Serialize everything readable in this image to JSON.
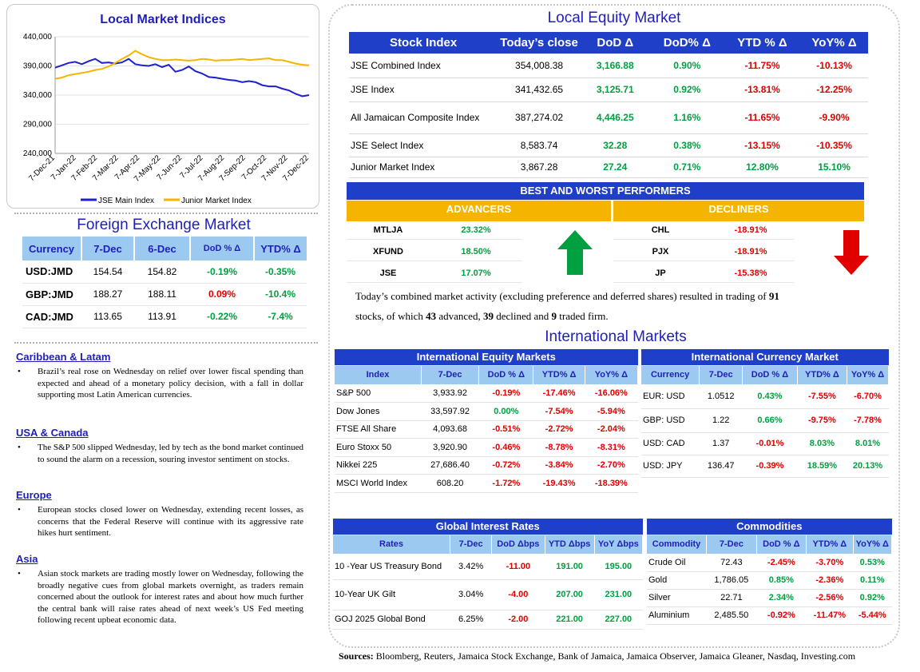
{
  "chart": {
    "title": "Local Market Indices",
    "chart_data": {
      "type": "line",
      "ylim": [
        240000,
        440000
      ],
      "yticks": [
        "440,000",
        "390,000",
        "340,000",
        "290,000",
        "240,000"
      ],
      "xticks": [
        "7-Dec-21",
        "7-Jan-22",
        "7-Feb-22",
        "7-Mar-22",
        "7-Apr-22",
        "7-May-22",
        "7-Jun-22",
        "7-Jul-22",
        "7-Aug-22",
        "7-Sep-22",
        "7-Oct-22",
        "7-Nov-22",
        "7-Dec-22"
      ],
      "series": [
        {
          "name": "JSE Main Index",
          "color": "#1f1fd0",
          "values": [
            387000,
            391000,
            395000,
            397000,
            393000,
            398000,
            402000,
            395000,
            396000,
            394000,
            396000,
            402000,
            393000,
            391000,
            390000,
            393000,
            388000,
            392000,
            380000,
            383000,
            389000,
            381000,
            377000,
            371000,
            370000,
            368000,
            366000,
            365000,
            362000,
            364000,
            362000,
            357000,
            355000,
            355000,
            351000,
            348000,
            342000,
            338000,
            340000
          ]
        },
        {
          "name": "Junior Market Index",
          "color": "#f4b400",
          "values": [
            368000,
            370000,
            374000,
            376000,
            378000,
            380000,
            383000,
            385000,
            389000,
            395000,
            402000,
            408000,
            416000,
            410000,
            405000,
            402000,
            400000,
            400000,
            401000,
            400000,
            399000,
            400000,
            402000,
            401000,
            399000,
            400000,
            400000,
            401000,
            402000,
            400000,
            401000,
            402000,
            403000,
            400000,
            400000,
            397000,
            394000,
            392000,
            391000
          ]
        }
      ],
      "legend": "bottom"
    }
  },
  "fx": {
    "title": "Foreign Exchange Market",
    "headers": [
      "Currency",
      "7-Dec",
      "6-Dec",
      "DoD % Δ",
      "YTD% Δ"
    ],
    "rows": [
      {
        "cur": "USD:JMD",
        "d7": "154.54",
        "d6": "154.82",
        "dod": "-0.19%",
        "dod_sign": "pos",
        "ytd": "-0.35%",
        "ytd_sign": "pos"
      },
      {
        "cur": "GBP:JMD",
        "d7": "188.27",
        "d6": "188.11",
        "dod": "0.09%",
        "dod_sign": "neg",
        "ytd": "-10.4%",
        "ytd_sign": "pos"
      },
      {
        "cur": "CAD:JMD",
        "d7": "113.65",
        "d6": "113.91",
        "dod": "-0.22%",
        "dod_sign": "pos",
        "ytd": "-7.4%",
        "ytd_sign": "pos"
      }
    ]
  },
  "news": [
    {
      "head": "Caribbean & Latam",
      "body": "Brazil’s real rose on Wednesday on relief over lower fiscal spending than expected and ahead of a monetary policy decision, with a fall in dollar supporting most Latin American currencies."
    },
    {
      "head": "USA & Canada",
      "body": "The S&P 500 slipped Wednesday, led by tech as the bond market continued to sound the alarm on a recession, souring investor sentiment on stocks."
    },
    {
      "head": "Europe",
      "body": "European stocks closed lower on Wednesday, extending recent losses, as concerns that the Federal Reserve will continue with its aggressive rate hikes hurt sentiment."
    },
    {
      "head": "Asia",
      "body": "Asian stock markets are trading mostly lower on Wednesday, following the broadly negative cues from global markets overnight, as traders remain concerned about the outlook for interest rates and about how much further the central bank will raise rates ahead of next week’s US Fed meeting following recent upbeat economic data."
    }
  ],
  "equity": {
    "title": "Local Equity Market",
    "headers": [
      "Stock Index",
      "Today’s close",
      "DoD  Δ",
      "DoD% Δ",
      "YTD % Δ",
      "YoY% Δ"
    ],
    "rows": [
      {
        "name": "JSE Combined Index",
        "close": "354,008.38",
        "dod": "3,166.88",
        "dodp": "0.90%",
        "ytd": "-11.75%",
        "yoy": "-10.13%",
        "h": 30
      },
      {
        "name": "JSE Index",
        "close": "341,432.65",
        "dod": "3,125.71",
        "dodp": "0.92%",
        "ytd": "-13.81%",
        "yoy": "-12.25%",
        "h": 30
      },
      {
        "name": "All Jamaican Composite Index",
        "close": "387,274.02",
        "dod": "4,446.25",
        "dodp": "1.16%",
        "ytd": "-11.65%",
        "yoy": "-9.90%",
        "h": 40
      },
      {
        "name": "JSE Select Index",
        "close": "8,583.74",
        "dod": "32.28",
        "dodp": "0.38%",
        "ytd": "-13.15%",
        "yoy": "-10.35%",
        "h": 29
      },
      {
        "name": "Junior Market Index",
        "close": "3,867.28",
        "dod": "27.24",
        "dodp": "0.71%",
        "ytd": "12.80%",
        "yoy": "15.10%",
        "ytd_sign": "pos",
        "yoy_sign": "pos",
        "h": 26
      }
    ]
  },
  "performers": {
    "title": "BEST AND WORST PERFORMERS",
    "advancers_label": "ADVANCERS",
    "decliners_label": "DECLINERS",
    "advancers": [
      {
        "sym": "MTLJA",
        "val": "23.32%"
      },
      {
        "sym": "XFUND",
        "val": "18.50%"
      },
      {
        "sym": "JSE",
        "val": "17.07%"
      }
    ],
    "decliners": [
      {
        "sym": "CHL",
        "val": "-18.91%"
      },
      {
        "sym": "PJX",
        "val": "-18.91%"
      },
      {
        "sym": "JP",
        "val": "-15.38%"
      }
    ]
  },
  "summary": {
    "t1": "Today’s combined market activity (excluding preference and deferred shares) resulted in trading of ",
    "n1": "91",
    "t2": "stocks, of which ",
    "n2": "43",
    "t3": " advanced, ",
    "n3": "39",
    "t4": " declined and ",
    "n4": "9",
    "t5": " traded firm."
  },
  "intl_title": "International Markets",
  "intl_equity": {
    "caption": "International Equity Markets",
    "headers": [
      "Index",
      "7-Dec",
      "DoD % Δ",
      "YTD% Δ",
      "YoY% Δ"
    ],
    "rows": [
      {
        "name": "S&P 500",
        "v": "3,933.92",
        "dod": "-0.19%",
        "ytd": "-17.46%",
        "yoy": "-16.06%"
      },
      {
        "name": "Dow Jones",
        "v": "33,597.92",
        "dod": "0.00%",
        "dod_sign": "pos",
        "ytd": "-7.54%",
        "yoy": "-5.94%"
      },
      {
        "name": "FTSE All Share",
        "v": "4,093.68",
        "dod": "-0.51%",
        "ytd": "-2.72%",
        "yoy": "-2.04%"
      },
      {
        "name": "Euro Stoxx 50",
        "v": "3,920.90",
        "dod": "-0.46%",
        "ytd": "-8.78%",
        "yoy": "-8.31%"
      },
      {
        "name": "Nikkei 225",
        "v": "27,686.40",
        "dod": "-0.72%",
        "ytd": "-3.84%",
        "yoy": "-2.70%"
      },
      {
        "name": "MSCI World Index",
        "v": "608.20",
        "dod": "-1.72%",
        "ytd": "-19.43%",
        "yoy": "-18.39%"
      }
    ]
  },
  "intl_currency": {
    "caption": "International Currency Market",
    "headers": [
      "Currency",
      "7-Dec",
      "DoD % Δ",
      "YTD% Δ",
      "YoY% Δ"
    ],
    "rows": [
      {
        "name": "EUR: USD",
        "v": "1.0512",
        "dod": "0.43%",
        "dod_sign": "pos",
        "ytd": "-7.55%",
        "yoy": "-6.70%"
      },
      {
        "name": "GBP: USD",
        "v": "1.22",
        "dod": "0.66%",
        "dod_sign": "pos",
        "ytd": "-9.75%",
        "yoy": "-7.78%"
      },
      {
        "name": "USD: CAD",
        "v": "1.37",
        "dod": "-0.01%",
        "ytd": "8.03%",
        "ytd_sign": "pos",
        "yoy": "8.01%",
        "yoy_sign": "pos"
      },
      {
        "name": "USD: JPY",
        "v": "136.47",
        "dod": "-0.39%",
        "ytd": "18.59%",
        "ytd_sign": "pos",
        "yoy": "20.13%",
        "yoy_sign": "pos"
      }
    ]
  },
  "rates": {
    "caption": "Global Interest Rates",
    "headers": [
      "Rates",
      "7-Dec",
      "DoD Δbps",
      "YTD Δbps",
      "YoY Δbps"
    ],
    "rows": [
      {
        "name": "10 -Year US Treasury Bond",
        "v": "3.42%",
        "dod": "-11.00",
        "ytd": "191.00",
        "yoy": "195.00"
      },
      {
        "name": "10-Year UK Gilt",
        "v": "3.04%",
        "dod": "-4.00",
        "ytd": "207.00",
        "yoy": "231.00"
      },
      {
        "name": "GOJ 2025 Global Bond",
        "v": "6.25%",
        "dod": "-2.00",
        "ytd": "221.00",
        "yoy": "227.00"
      }
    ]
  },
  "commodities": {
    "caption": "Commodities",
    "headers": [
      "Commodity",
      "7-Dec",
      "DoD % Δ",
      "YTD% Δ",
      "YoY% Δ"
    ],
    "rows": [
      {
        "name": "Crude Oil",
        "v": "72.43",
        "dod": "-2.45%",
        "ytd": "-3.70%",
        "yoy": "0.53%",
        "yoy_sign": "pos"
      },
      {
        "name": "Gold",
        "v": "1,786.05",
        "dod": "0.85%",
        "dod_sign": "pos",
        "ytd": "-2.36%",
        "yoy": "0.11%",
        "yoy_sign": "pos"
      },
      {
        "name": "Silver",
        "v": "22.71",
        "dod": "2.34%",
        "dod_sign": "pos",
        "ytd": "-2.56%",
        "yoy": "0.92%",
        "yoy_sign": "pos"
      },
      {
        "name": "Aluminium",
        "v": "2,485.50",
        "dod": "-0.92%",
        "ytd": "-11.47%",
        "yoy": "-5.44%"
      }
    ]
  },
  "sources": {
    "label": "Sources:",
    "text": " Bloomberg, Reuters, Jamaica Stock Exchange, Bank of Jamaica, Jamaica Observer, Jamaica Gleaner, Nasdaq, Investing.com"
  }
}
